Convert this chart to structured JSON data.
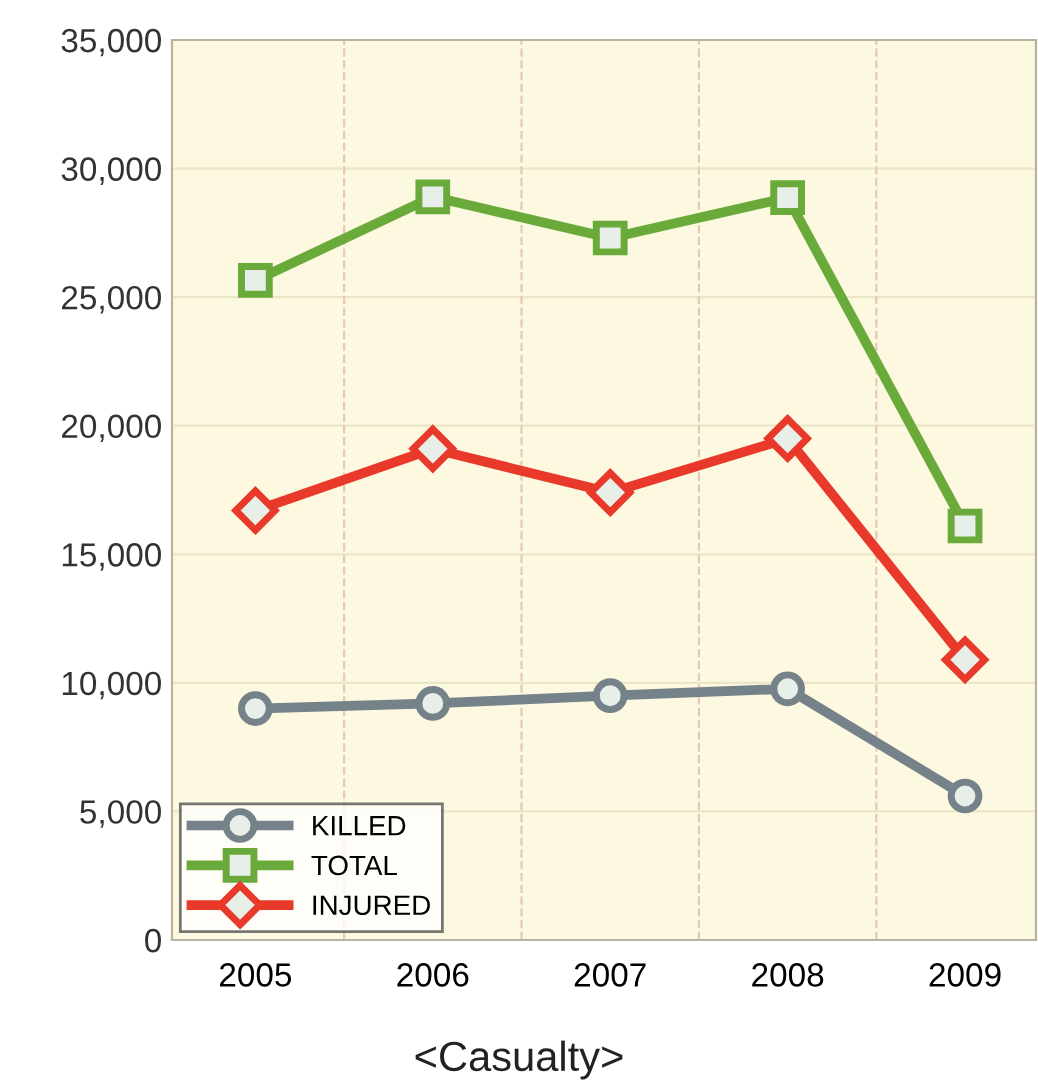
{
  "chart_data": {
    "type": "line",
    "categories": [
      "2005",
      "2006",
      "2007",
      "2008",
      "2009"
    ],
    "series": [
      {
        "name": "KILLED",
        "color": "#76828a",
        "marker": "circle",
        "values": [
          9000,
          9200,
          9500,
          9770,
          5600
        ]
      },
      {
        "name": "TOTAL",
        "color": "#6aaa3a",
        "marker": "square",
        "values": [
          25650,
          28900,
          27300,
          28870,
          16100
        ]
      },
      {
        "name": "INJURED",
        "color": "#e8392a",
        "marker": "diamond",
        "values": [
          16700,
          19100,
          17400,
          19500,
          10900
        ]
      }
    ],
    "ylim": [
      0,
      35000
    ],
    "yticks": [
      {
        "value": 0,
        "label": "0"
      },
      {
        "value": 5000,
        "label": "5,000"
      },
      {
        "value": 10000,
        "label": "10,000"
      },
      {
        "value": 15000,
        "label": "15,000"
      },
      {
        "value": 20000,
        "label": "20,000"
      },
      {
        "value": 25000,
        "label": "25,000"
      },
      {
        "value": 30000,
        "label": "30,000"
      },
      {
        "value": 35000,
        "label": "35,000"
      }
    ],
    "grid": true,
    "legend": "bottom left",
    "line_style": "solid",
    "annotations": [
      "<Casualty>"
    ]
  }
}
